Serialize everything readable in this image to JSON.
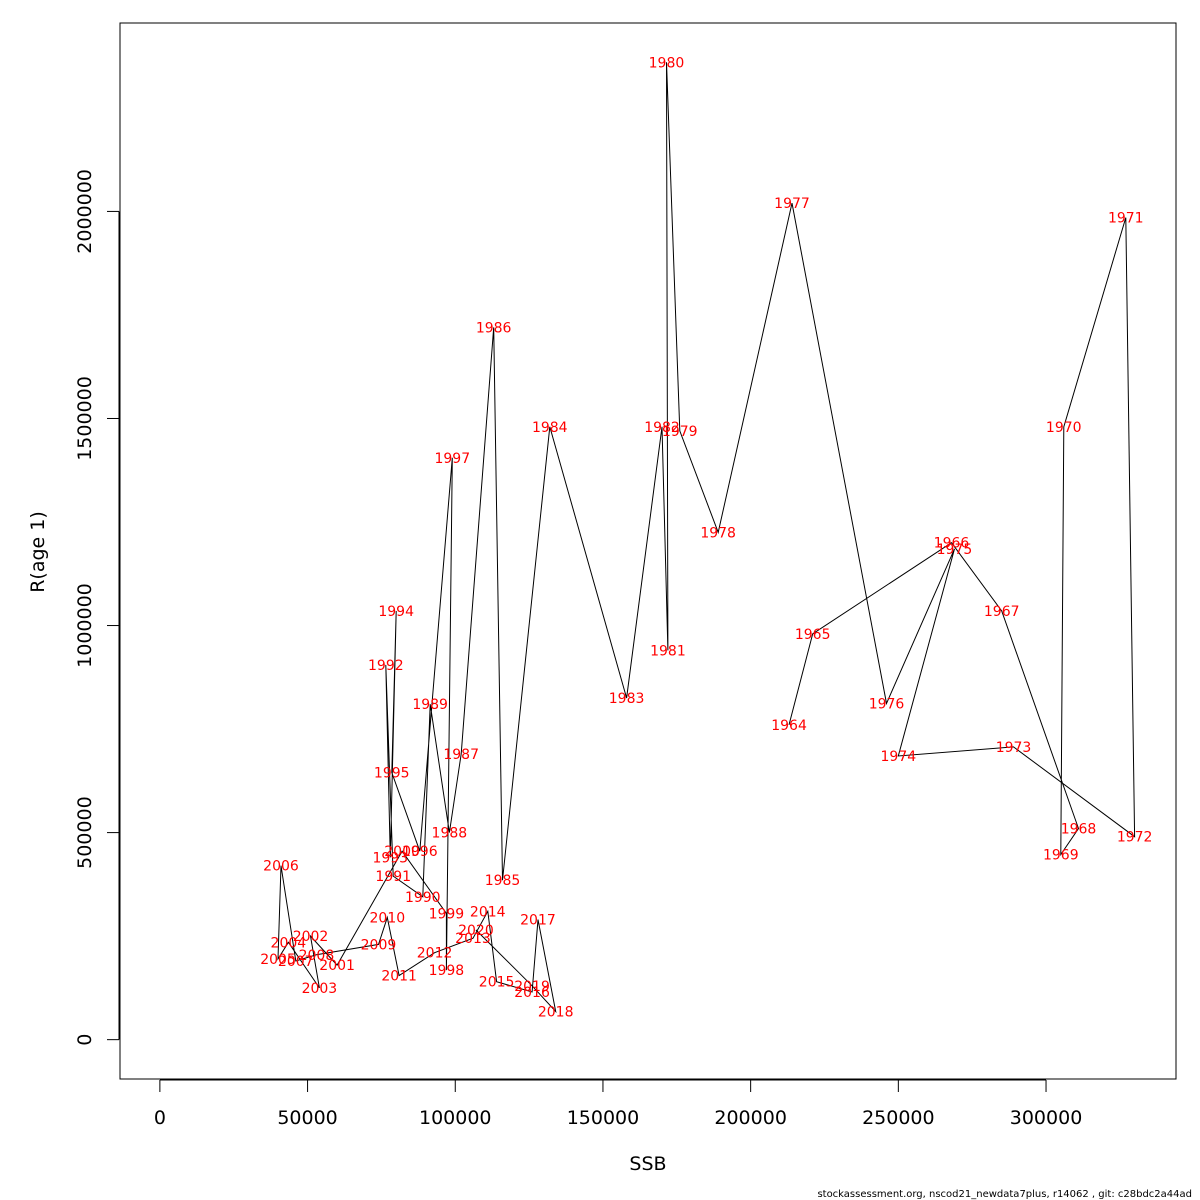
{
  "chart_data": {
    "type": "line",
    "xlabel": "SSB",
    "ylabel": "R(age 1)",
    "xlim": [
      -13500,
      344000
    ],
    "ylim": [
      -95000,
      2455000
    ],
    "xticks": [
      0,
      50000,
      100000,
      150000,
      200000,
      250000,
      300000
    ],
    "yticks": [
      0,
      500000,
      1000000,
      1500000,
      2000000
    ],
    "xtick_labels": [
      "0",
      "50000",
      "100000",
      "150000",
      "200000",
      "250000",
      "300000"
    ],
    "ytick_labels": [
      "0",
      "500000",
      "1000000",
      "1500000",
      "2000000"
    ],
    "line_color": "#000000",
    "label_color": "#ff0000",
    "points": [
      {
        "label": "1964",
        "x": 213000,
        "y": 760000
      },
      {
        "label": "1965",
        "x": 221000,
        "y": 980000
      },
      {
        "label": "1966",
        "x": 268000,
        "y": 1200000
      },
      {
        "label": "1967",
        "x": 285000,
        "y": 1035000
      },
      {
        "label": "1968",
        "x": 311000,
        "y": 510000
      },
      {
        "label": "1969",
        "x": 305000,
        "y": 447000
      },
      {
        "label": "1970",
        "x": 306000,
        "y": 1480000
      },
      {
        "label": "1971",
        "x": 327000,
        "y": 1985000
      },
      {
        "label": "1972",
        "x": 330000,
        "y": 490000
      },
      {
        "label": "1973",
        "x": 289000,
        "y": 707000
      },
      {
        "label": "1974",
        "x": 250000,
        "y": 685000
      },
      {
        "label": "1975",
        "x": 269000,
        "y": 1185000
      },
      {
        "label": "1976",
        "x": 246000,
        "y": 812000
      },
      {
        "label": "1977",
        "x": 214000,
        "y": 2020000
      },
      {
        "label": "1978",
        "x": 189000,
        "y": 1225000
      },
      {
        "label": "1979",
        "x": 176000,
        "y": 1470000
      },
      {
        "label": "1980",
        "x": 171500,
        "y": 2360000
      },
      {
        "label": "1981",
        "x": 172000,
        "y": 940000
      },
      {
        "label": "1982",
        "x": 170000,
        "y": 1480000
      },
      {
        "label": "1983",
        "x": 158000,
        "y": 825000
      },
      {
        "label": "1984",
        "x": 132000,
        "y": 1480000
      },
      {
        "label": "1985",
        "x": 116000,
        "y": 385000
      },
      {
        "label": "1986",
        "x": 113000,
        "y": 1720000
      },
      {
        "label": "1987",
        "x": 102000,
        "y": 690000
      },
      {
        "label": "1988",
        "x": 98000,
        "y": 500000
      },
      {
        "label": "1989",
        "x": 91500,
        "y": 810000
      },
      {
        "label": "1990",
        "x": 89000,
        "y": 345000
      },
      {
        "label": "1991",
        "x": 79000,
        "y": 395000
      },
      {
        "label": "1992",
        "x": 76500,
        "y": 905000
      },
      {
        "label": "1993",
        "x": 78000,
        "y": 440000
      },
      {
        "label": "1994",
        "x": 80000,
        "y": 1035000
      },
      {
        "label": "1995",
        "x": 78500,
        "y": 645000
      },
      {
        "label": "1996",
        "x": 88000,
        "y": 455000
      },
      {
        "label": "1997",
        "x": 99000,
        "y": 1405000
      },
      {
        "label": "1998",
        "x": 97000,
        "y": 168000
      },
      {
        "label": "1999",
        "x": 97000,
        "y": 305000
      },
      {
        "label": "2000",
        "x": 82000,
        "y": 455000
      },
      {
        "label": "2001",
        "x": 60000,
        "y": 180000
      },
      {
        "label": "2002",
        "x": 51000,
        "y": 250000
      },
      {
        "label": "2003",
        "x": 54000,
        "y": 125000
      },
      {
        "label": "2004",
        "x": 43500,
        "y": 235000
      },
      {
        "label": "2005",
        "x": 40000,
        "y": 195000
      },
      {
        "label": "2006",
        "x": 41000,
        "y": 420000
      },
      {
        "label": "2007",
        "x": 46000,
        "y": 190000
      },
      {
        "label": "2008",
        "x": 53000,
        "y": 205000
      },
      {
        "label": "2009",
        "x": 74000,
        "y": 230000
      },
      {
        "label": "2010",
        "x": 77000,
        "y": 295000
      },
      {
        "label": "2011",
        "x": 81000,
        "y": 155000
      },
      {
        "label": "2012",
        "x": 93000,
        "y": 210000
      },
      {
        "label": "2013",
        "x": 106000,
        "y": 245000
      },
      {
        "label": "2014",
        "x": 111000,
        "y": 310000
      },
      {
        "label": "2015",
        "x": 114000,
        "y": 140000
      },
      {
        "label": "2016",
        "x": 126000,
        "y": 115000
      },
      {
        "label": "2017",
        "x": 128000,
        "y": 290000
      },
      {
        "label": "2018",
        "x": 134000,
        "y": 68000
      },
      {
        "label": "2019",
        "x": 126000,
        "y": 130000
      },
      {
        "label": "2020",
        "x": 107000,
        "y": 265000
      }
    ]
  },
  "footer": "stockassessment.org, nscod21_newdata7plus, r14062 , git: c28bdc2a44ad"
}
